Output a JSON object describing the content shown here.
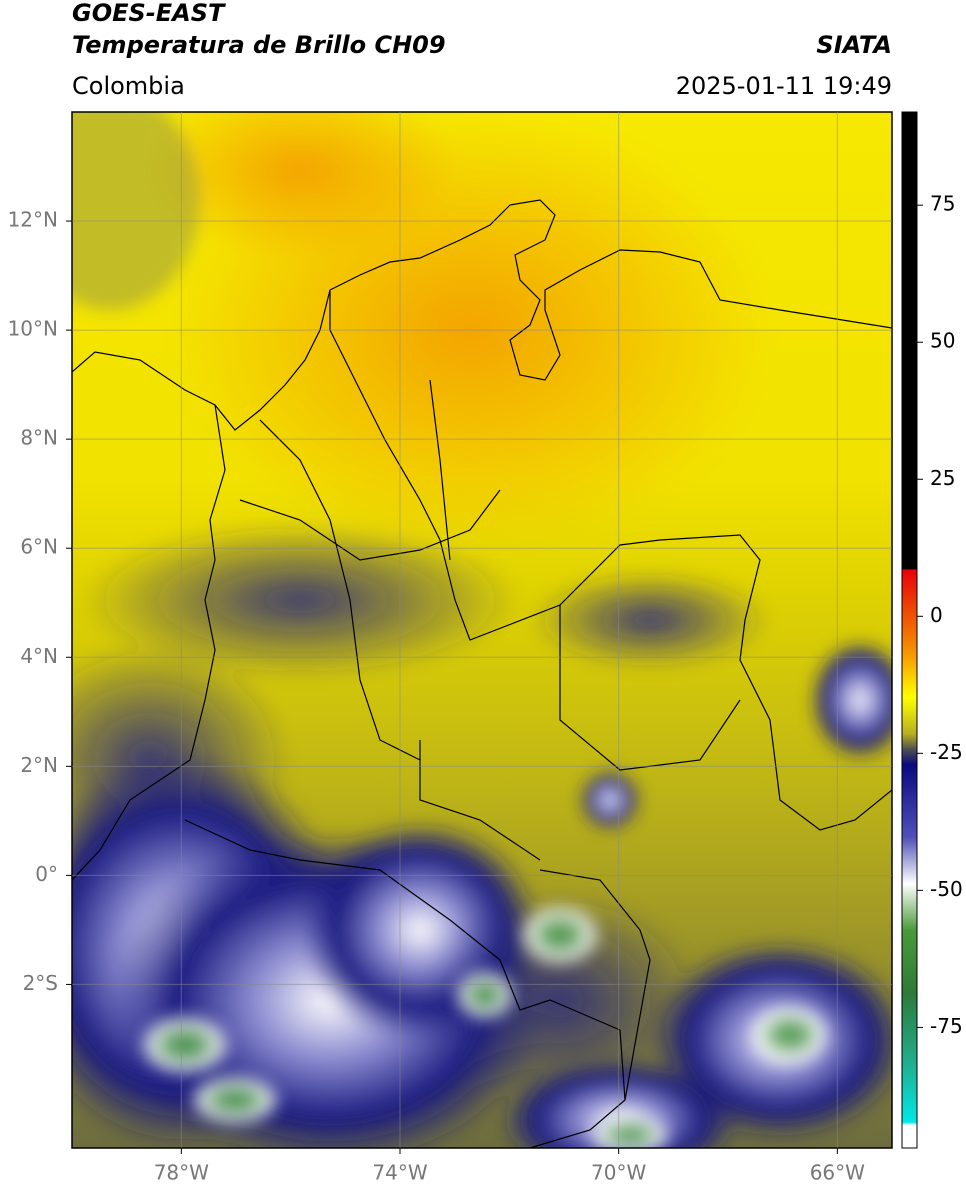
{
  "header": {
    "title": "GOES-EAST",
    "subtitle": "Temperatura de Brillo CH09",
    "region": "Colombia",
    "source": "SIATA",
    "datetime": "2025-01-11 19:49"
  },
  "map": {
    "xlim": [
      -80,
      -65
    ],
    "ylim": [
      -5,
      14
    ],
    "xticks": [
      {
        "value": -78,
        "label": "78°W"
      },
      {
        "value": -74,
        "label": "74°W"
      },
      {
        "value": -70,
        "label": "70°W"
      },
      {
        "value": -66,
        "label": "66°W"
      }
    ],
    "yticks": [
      {
        "value": 12,
        "label": "12°N"
      },
      {
        "value": 10,
        "label": "10°N"
      },
      {
        "value": 8,
        "label": "8°N"
      },
      {
        "value": 6,
        "label": "6°N"
      },
      {
        "value": 4,
        "label": "4°N"
      },
      {
        "value": 2,
        "label": "2°N"
      },
      {
        "value": 0,
        "label": "0°"
      },
      {
        "value": -2,
        "label": "2°S"
      }
    ]
  },
  "colorbar": {
    "lim": [
      -97,
      92
    ],
    "ticks": [
      75,
      50,
      25,
      0,
      -25,
      -50,
      -75
    ]
  }
}
